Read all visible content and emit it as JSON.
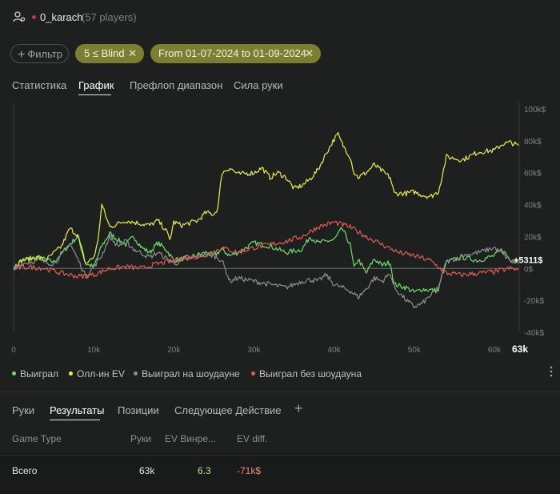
{
  "header": {
    "username": "0_karach",
    "players": "(57 players)"
  },
  "filters": {
    "filter_label": "Фильтр",
    "blind_chip": "5 ≤ Blind",
    "date_chip": "From 01-07-2024 to 01-09-2024"
  },
  "top_tabs": [
    {
      "label": "Статистика",
      "active": false
    },
    {
      "label": "График",
      "active": true
    },
    {
      "label": "Префлоп диапазон",
      "active": false
    },
    {
      "label": "Сила руки",
      "active": false
    }
  ],
  "chart_data": {
    "type": "line",
    "x_ticks": [
      "0",
      "10k",
      "20k",
      "30k",
      "40k",
      "50k",
      "60k"
    ],
    "x_end_label": "63k",
    "y_ticks": [
      "100k$",
      "80k$",
      "60k$",
      "40k$",
      "20k$",
      "0$",
      "-20k$",
      "-40k$"
    ],
    "ylim": [
      -40000,
      100000
    ],
    "xlim": [
      0,
      63000
    ],
    "current_value_label": "+5311$",
    "current_value": 5311,
    "grid": false,
    "legend_position": "bottom-left",
    "series": [
      {
        "name": "Выиграл",
        "color": "#6ee06a",
        "points": [
          [
            0,
            0
          ],
          [
            1000,
            5000
          ],
          [
            3000,
            7000
          ],
          [
            5000,
            4000
          ],
          [
            7000,
            15000
          ],
          [
            8000,
            20000
          ],
          [
            9000,
            3000
          ],
          [
            10000,
            1000
          ],
          [
            11000,
            14000
          ],
          [
            12000,
            22000
          ],
          [
            13000,
            18000
          ],
          [
            14000,
            15000
          ],
          [
            15000,
            20000
          ],
          [
            16000,
            13000
          ],
          [
            17000,
            10000
          ],
          [
            18000,
            16000
          ],
          [
            19000,
            12000
          ],
          [
            20000,
            5000
          ],
          [
            22000,
            7000
          ],
          [
            24000,
            10000
          ],
          [
            25000,
            8000
          ],
          [
            26000,
            12000
          ],
          [
            27000,
            8000
          ],
          [
            28000,
            10000
          ],
          [
            30000,
            16000
          ],
          [
            32000,
            14000
          ],
          [
            34000,
            10000
          ],
          [
            36000,
            12000
          ],
          [
            37000,
            20000
          ],
          [
            38000,
            16000
          ],
          [
            40000,
            18000
          ],
          [
            41000,
            25000
          ],
          [
            42000,
            15000
          ],
          [
            42500,
            0
          ],
          [
            43000,
            6000
          ],
          [
            44000,
            -3000
          ],
          [
            45000,
            6000
          ],
          [
            46000,
            2000
          ],
          [
            47000,
            4000
          ],
          [
            47500,
            -10000
          ],
          [
            49000,
            -12000
          ],
          [
            50000,
            -15000
          ],
          [
            51000,
            -13000
          ],
          [
            53000,
            -14000
          ],
          [
            53500,
            -4000
          ],
          [
            54000,
            4000
          ],
          [
            56000,
            7000
          ],
          [
            58000,
            5000
          ],
          [
            60000,
            8000
          ],
          [
            61000,
            12000
          ],
          [
            62000,
            5000
          ],
          [
            63000,
            5311
          ]
        ]
      },
      {
        "name": "Олл-ин EV",
        "color": "#ecef3e",
        "points": [
          [
            0,
            0
          ],
          [
            1000,
            5000
          ],
          [
            3000,
            7000
          ],
          [
            4000,
            5000
          ],
          [
            6000,
            14000
          ],
          [
            7000,
            25000
          ],
          [
            8000,
            21000
          ],
          [
            9000,
            3000
          ],
          [
            10000,
            7000
          ],
          [
            10500,
            16000
          ],
          [
            11000,
            40000
          ],
          [
            12000,
            26000
          ],
          [
            14000,
            30000
          ],
          [
            16000,
            28000
          ],
          [
            17000,
            27000
          ],
          [
            18000,
            30000
          ],
          [
            19000,
            24000
          ],
          [
            19500,
            18000
          ],
          [
            20000,
            29000
          ],
          [
            21000,
            27000
          ],
          [
            23000,
            30000
          ],
          [
            24000,
            35000
          ],
          [
            25000,
            34000
          ],
          [
            25500,
            38000
          ],
          [
            26000,
            60000
          ],
          [
            27000,
            63000
          ],
          [
            28000,
            59000
          ],
          [
            30000,
            60000
          ],
          [
            31000,
            63000
          ],
          [
            32000,
            57000
          ],
          [
            33000,
            60000
          ],
          [
            34000,
            57000
          ],
          [
            35000,
            50000
          ],
          [
            36000,
            52000
          ],
          [
            37000,
            56000
          ],
          [
            38000,
            62000
          ],
          [
            39000,
            72000
          ],
          [
            40000,
            81000
          ],
          [
            40500,
            84000
          ],
          [
            41000,
            78000
          ],
          [
            42000,
            70000
          ],
          [
            42500,
            60000
          ],
          [
            43000,
            57000
          ],
          [
            44000,
            60000
          ],
          [
            45000,
            65000
          ],
          [
            46000,
            61000
          ],
          [
            47000,
            57000
          ],
          [
            47500,
            47000
          ],
          [
            49000,
            47000
          ],
          [
            50000,
            48000
          ],
          [
            51000,
            46000
          ],
          [
            52000,
            45000
          ],
          [
            53000,
            48000
          ],
          [
            53500,
            58000
          ],
          [
            54000,
            70000
          ],
          [
            56000,
            68000
          ],
          [
            58000,
            73000
          ],
          [
            60000,
            74000
          ],
          [
            61000,
            78000
          ],
          [
            62000,
            79000
          ],
          [
            63000,
            77000
          ]
        ]
      },
      {
        "name": "Выиграл на шоудауне",
        "color": "#8c8f8d",
        "points": [
          [
            0,
            0
          ],
          [
            1000,
            3000
          ],
          [
            3000,
            5000
          ],
          [
            5000,
            3000
          ],
          [
            6000,
            8000
          ],
          [
            7000,
            16000
          ],
          [
            8000,
            6000
          ],
          [
            9000,
            -5000
          ],
          [
            10000,
            1000
          ],
          [
            11000,
            8000
          ],
          [
            12000,
            20000
          ],
          [
            13000,
            14000
          ],
          [
            14000,
            17000
          ],
          [
            15000,
            12000
          ],
          [
            17000,
            7000
          ],
          [
            18000,
            10000
          ],
          [
            20000,
            3000
          ],
          [
            22000,
            6000
          ],
          [
            24000,
            9000
          ],
          [
            25000,
            8000
          ],
          [
            26000,
            5000
          ],
          [
            27000,
            -8000
          ],
          [
            28000,
            -6000
          ],
          [
            30000,
            -8000
          ],
          [
            32000,
            -10000
          ],
          [
            34000,
            -12000
          ],
          [
            36000,
            -8000
          ],
          [
            37000,
            -7000
          ],
          [
            38000,
            -8000
          ],
          [
            39000,
            -4000
          ],
          [
            40000,
            -10000
          ],
          [
            41000,
            -12000
          ],
          [
            42000,
            -14000
          ],
          [
            43000,
            -18000
          ],
          [
            44000,
            -13000
          ],
          [
            45000,
            -6000
          ],
          [
            46000,
            -8000
          ],
          [
            47000,
            -3000
          ],
          [
            47500,
            -12000
          ],
          [
            49000,
            -20000
          ],
          [
            50000,
            -24000
          ],
          [
            51000,
            -22000
          ],
          [
            53000,
            -12000
          ],
          [
            54000,
            4000
          ],
          [
            56000,
            8000
          ],
          [
            58000,
            10000
          ],
          [
            60000,
            13000
          ],
          [
            61000,
            9000
          ],
          [
            62000,
            5000
          ],
          [
            63000,
            3000
          ]
        ]
      },
      {
        "name": "Выиграл без шоудауна",
        "color": "#e35b54",
        "points": [
          [
            0,
            0
          ],
          [
            2000,
            1000
          ],
          [
            4000,
            0
          ],
          [
            6000,
            -3000
          ],
          [
            8000,
            -5000
          ],
          [
            10000,
            -4000
          ],
          [
            12000,
            0
          ],
          [
            14000,
            1000
          ],
          [
            16000,
            0
          ],
          [
            18000,
            3000
          ],
          [
            20000,
            5000
          ],
          [
            22000,
            7000
          ],
          [
            24000,
            8000
          ],
          [
            26000,
            13000
          ],
          [
            28000,
            10000
          ],
          [
            30000,
            13000
          ],
          [
            32000,
            15000
          ],
          [
            34000,
            17000
          ],
          [
            36000,
            20000
          ],
          [
            38000,
            26000
          ],
          [
            40000,
            29000
          ],
          [
            42000,
            26000
          ],
          [
            44000,
            20000
          ],
          [
            46000,
            15000
          ],
          [
            48000,
            10000
          ],
          [
            50000,
            8000
          ],
          [
            52000,
            5000
          ],
          [
            54000,
            -3000
          ],
          [
            56000,
            -4000
          ],
          [
            58000,
            -3000
          ],
          [
            60000,
            -2000
          ],
          [
            62000,
            0
          ],
          [
            63000,
            -1000
          ]
        ]
      }
    ]
  },
  "legend": [
    {
      "label": "Выиграл",
      "color": "#6ee06a"
    },
    {
      "label": "Олл-ин EV",
      "color": "#ecef3e"
    },
    {
      "label": "Выиграл на шоудауне",
      "color": "#8c8f8d"
    },
    {
      "label": "Выиграл без шоудауна",
      "color": "#e35b54"
    }
  ],
  "bottom_tabs": [
    {
      "label": "Руки",
      "active": false
    },
    {
      "label": "Результаты",
      "active": true
    },
    {
      "label": "Позиции",
      "active": false
    },
    {
      "label": "Следующее Действие",
      "active": false
    }
  ],
  "table": {
    "headers": [
      "Game Type",
      "Руки",
      "EV Винре...",
      "EV diff."
    ],
    "total_row": {
      "game_type": "Всего",
      "hands": "63k",
      "ev_winrate": "6.3",
      "ev_diff": "-71k$"
    }
  },
  "colors": {
    "background": "#1e201f",
    "chip_olive": "#7c7f2f",
    "positive": "#b8e28a",
    "negative": "#e88a7a"
  }
}
